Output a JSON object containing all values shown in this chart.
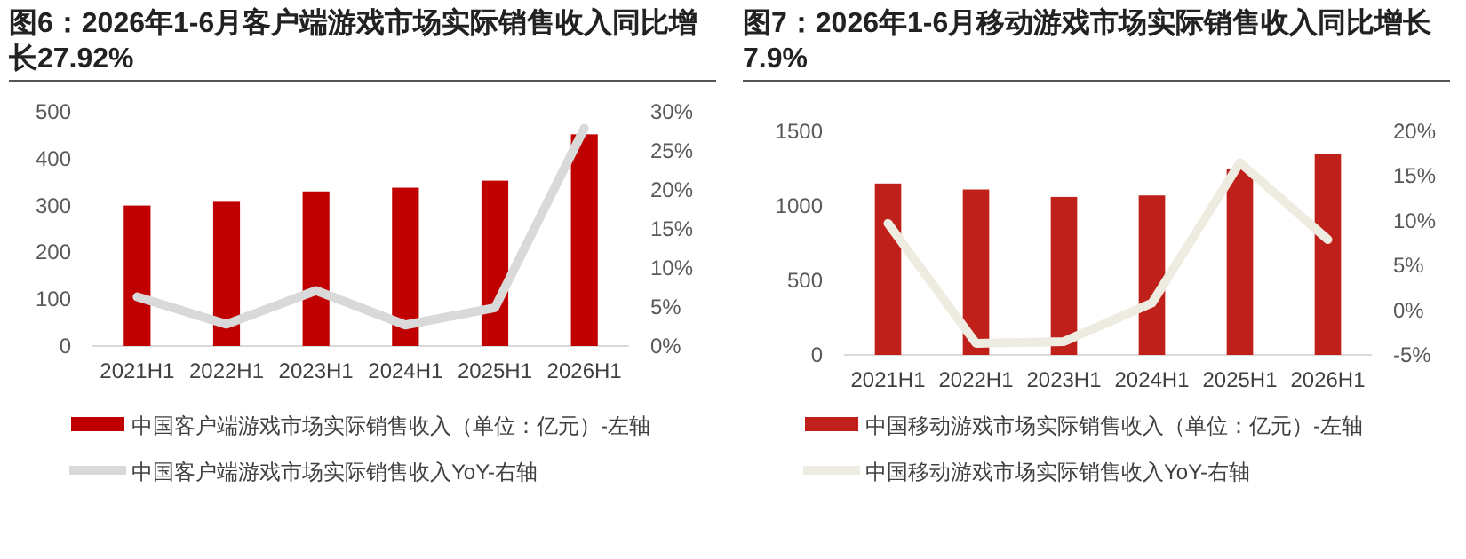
{
  "chart_data": [
    {
      "type": "bar",
      "title": "图6：2026年1-6月客户端游戏市场实际销售收入同比增长27.92%",
      "categories": [
        "2021H1",
        "2022H1",
        "2023H1",
        "2024H1",
        "2025H1",
        "2026H1"
      ],
      "series": [
        {
          "name": "中国客户端游戏市场实际销售收入（单位：亿元）-左轴",
          "color": "#c00000",
          "values": [
            300,
            308,
            330,
            338,
            353,
            452
          ]
        },
        {
          "name": "中国客户端游戏市场实际销售收入YoY-右轴",
          "type": "line",
          "axis": "y2",
          "color": "#d9d9d9",
          "values": [
            6.3,
            2.8,
            7.1,
            2.7,
            4.9,
            27.9
          ]
        }
      ],
      "ylim": [
        0,
        500
      ],
      "yticks": [
        0,
        100,
        200,
        300,
        400,
        500
      ],
      "y2lim": [
        0,
        30
      ],
      "y2ticks": [
        {
          "value": 0,
          "label": "0%"
        },
        {
          "value": 5,
          "label": "5%"
        },
        {
          "value": 10,
          "label": "10%"
        },
        {
          "value": 15,
          "label": "15%"
        },
        {
          "value": 20,
          "label": "20%"
        },
        {
          "value": 25,
          "label": "25%"
        },
        {
          "value": 30,
          "label": "30%"
        }
      ],
      "grid": false,
      "legend": "bottom",
      "marker": "none",
      "line_style": "solid"
    },
    {
      "type": "bar",
      "title": "图7：2026年1-6月移动游戏市场实际销售收入同比增长7.9%",
      "categories": [
        "2021H1",
        "2022H1",
        "2023H1",
        "2024H1",
        "2025H1",
        "2026H1"
      ],
      "series": [
        {
          "name": "中国移动游戏市场实际销售收入（单位：亿元）-左轴",
          "color": "#c0201a",
          "values": [
            1150,
            1110,
            1060,
            1070,
            1250,
            1350
          ]
        },
        {
          "name": "中国移动游戏市场实际销售收入YoY-右轴",
          "type": "line",
          "axis": "y2",
          "color": "#eeece1",
          "values": [
            9.7,
            -3.7,
            -3.5,
            0.8,
            16.5,
            7.9
          ]
        }
      ],
      "ylim": [
        0,
        1500
      ],
      "yticks": [
        0,
        500,
        1000,
        1500
      ],
      "y2lim": [
        -5,
        20
      ],
      "y2ticks": [
        {
          "value": -5,
          "label": "-5%"
        },
        {
          "value": 0,
          "label": "0%"
        },
        {
          "value": 5,
          "label": "5%"
        },
        {
          "value": 10,
          "label": "10%"
        },
        {
          "value": 15,
          "label": "15%"
        },
        {
          "value": 20,
          "label": "20%"
        }
      ],
      "grid": false,
      "legend": "bottom",
      "marker": "none",
      "line_style": "solid"
    }
  ]
}
